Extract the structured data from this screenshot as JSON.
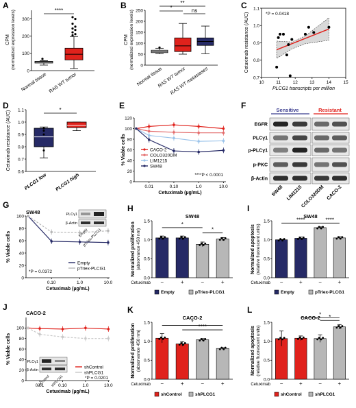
{
  "colors": {
    "red": "#e0221c",
    "darkred": "#a8151b",
    "navy": "#262a66",
    "lightblue": "#9cc4ea",
    "blue": "#3b3d8f",
    "grey": "#b7b7b7",
    "darkgrey": "#6f6f6f",
    "lightgrey": "#c8c8c8"
  },
  "chart_data": [
    {
      "panel": "A",
      "type": "box",
      "ylabel": "CPM",
      "ylabel2": "(normalized expression levels)",
      "yticks": [
        "0",
        "100",
        "200",
        "300"
      ],
      "ylim": [
        0,
        350
      ],
      "categories": [
        "Normal tissue",
        "RAS WT tumor"
      ],
      "boxes": [
        {
          "min": 32,
          "q1": 44,
          "median": 50,
          "q3": 54,
          "max": 58,
          "outliers": [
            68
          ]
        },
        {
          "min": 12,
          "q1": 62,
          "median": 95,
          "q3": 130,
          "max": 198,
          "outliers": [
            205,
            212,
            222,
            236,
            244,
            255,
            272,
            300,
            310
          ]
        }
      ],
      "significance": [
        {
          "label": "****"
        }
      ]
    },
    {
      "panel": "B",
      "type": "box",
      "ylabel": "CPM",
      "ylabel2": "(normalized expression levels)",
      "yticks": [
        "0",
        "50",
        "100",
        "150",
        "200",
        "250"
      ],
      "ylim": [
        0,
        250
      ],
      "categories": [
        "Normal tissue",
        "RAS WT tumor",
        "RAS WT metastases"
      ],
      "boxes": [
        {
          "min": 52,
          "q1": 57,
          "median": 62,
          "q3": 68,
          "max": 77,
          "outliers": [
            80
          ]
        },
        {
          "min": 50,
          "q1": 62,
          "median": 88,
          "q3": 124,
          "max": 190
        },
        {
          "min": 52,
          "q1": 90,
          "median": 108,
          "q3": 124,
          "max": 178
        }
      ],
      "significance": [
        {
          "label": "*"
        },
        {
          "label": "**"
        },
        {
          "label": "ns"
        }
      ]
    },
    {
      "panel": "C",
      "type": "scatter",
      "title": "*P = 0.0418",
      "ylabel": "Cetuximab resistance (AUC)",
      "xlabel": "PLCG1 transcripts per million",
      "xticks": [
        "10",
        "11",
        "12",
        "13",
        "14",
        "15"
      ],
      "yticks": [
        "0.7",
        "0.8",
        "0.9",
        "1.0",
        "1.1"
      ],
      "xlim": [
        10,
        15
      ],
      "ylim": [
        0.7,
        1.1
      ],
      "points": [
        [
          10.9,
          0.76
        ],
        [
          11.0,
          0.93
        ],
        [
          11.1,
          0.95
        ],
        [
          11.3,
          0.95
        ],
        [
          11.5,
          0.83
        ],
        [
          11.6,
          0.89
        ],
        [
          11.7,
          0.71
        ],
        [
          11.8,
          0.92
        ],
        [
          12.6,
          0.95
        ],
        [
          12.8,
          0.99
        ],
        [
          13.1,
          0.96
        ],
        [
          14.0,
          0.99
        ]
      ],
      "fit": [
        [
          10.9,
          0.86
        ],
        [
          14.0,
          0.98
        ]
      ]
    },
    {
      "panel": "D",
      "type": "box",
      "ylabel": "Cetuximab resistance (AUC)",
      "yticks": [
        "0.6",
        "0.7",
        "0.8",
        "0.9",
        "1.0",
        "1.1"
      ],
      "ylim": [
        0.6,
        1.1
      ],
      "categories": [
        "PLCG1 low",
        "PLCG1 high"
      ],
      "boxes": [
        {
          "min": 0.71,
          "q1": 0.8,
          "median": 0.88,
          "q3": 0.95,
          "max": 0.96
        },
        {
          "min": 0.93,
          "q1": 0.955,
          "median": 0.975,
          "q3": 1.0,
          "max": 1.0
        }
      ],
      "significance": [
        {
          "label": "*"
        }
      ]
    },
    {
      "panel": "E",
      "type": "line",
      "ylabel": "% Viable cells",
      "xlabel": "Cetuximab (µg/mL)",
      "xticks": [
        "0.01",
        "0.10",
        "1.0",
        "10.0"
      ],
      "yticks": [
        "0",
        "20",
        "40",
        "60",
        "80",
        "100",
        "120"
      ],
      "ylim": [
        0,
        120
      ],
      "x": [
        0,
        0.01,
        0.1,
        1,
        10
      ],
      "series": [
        {
          "name": "CACO-2",
          "values": [
            100,
            104,
            107,
            104,
            100
          ]
        },
        {
          "name": "COLO320DM",
          "values": [
            100,
            95,
            93,
            92,
            92
          ]
        },
        {
          "name": "LIM1215",
          "values": [
            100,
            87,
            82,
            76,
            77
          ]
        },
        {
          "name": "SW48",
          "values": [
            100,
            79,
            58,
            56,
            59
          ]
        }
      ],
      "annotation": "****P < 0.0001"
    },
    {
      "panel": "F",
      "type": "western blot",
      "groups": [
        "Sensitive",
        "Resistant"
      ],
      "rows": [
        "EGFR",
        "PLCγ1",
        "p-PLCγ1",
        "p-PKC",
        "β-Actin"
      ],
      "lanes": [
        "SW48",
        "LIM1215",
        "COLO320DM",
        "CACO-2"
      ]
    },
    {
      "panel": "G",
      "type": "line",
      "title": "SW48",
      "ylabel": "% Viable cells",
      "xlabel": "Cetuximab (µg/mL)",
      "xticks": [
        "0.10",
        "1.0",
        "10.0"
      ],
      "yticks": [
        "0",
        "20",
        "40",
        "60",
        "80",
        "100"
      ],
      "ylim": [
        0,
        100
      ],
      "x": [
        0,
        0.1,
        1,
        10
      ],
      "series": [
        {
          "name": "Empty",
          "values": [
            100,
            59,
            58,
            57
          ]
        },
        {
          "name": "pTriex-PLCG1",
          "values": [
            100,
            74,
            73,
            76
          ]
        }
      ],
      "annotation": "*P = 0.0372",
      "inset": {
        "rows": [
          "PLCγ1",
          "β-Actin"
        ],
        "lanes": [
          "Empty",
          "pTriex-PLCG1"
        ]
      }
    },
    {
      "panel": "H",
      "type": "bar",
      "title": "SW48",
      "ylabel": "Normalized proliferation",
      "ylabel2": "(absorvance 450 nm)",
      "yticks": [
        "0.0",
        "0.5",
        "1.0",
        "1.5"
      ],
      "ylim": [
        0,
        1.5
      ],
      "categories": [
        "−",
        "+",
        "−",
        "+"
      ],
      "cetuximab_label": "Cetuximab",
      "values": [
        1.05,
        1.05,
        0.88,
        1.02
      ],
      "errors": [
        0.05,
        0.05,
        0.06,
        0.04
      ],
      "legend": [
        "Empty",
        "pTriex-PLCG1"
      ],
      "significance": [
        {
          "label": "*"
        },
        {
          "label": "*"
        }
      ]
    },
    {
      "panel": "I",
      "type": "bar",
      "title": "SW48",
      "ylabel": "Normalized apoptosis",
      "ylabel2": "(relative fluorescent units)",
      "yticks": [
        "0.0",
        "0.5",
        "1.0",
        "1.5"
      ],
      "ylim": [
        0,
        1.5
      ],
      "categories": [
        "−",
        "+",
        "−",
        "+"
      ],
      "cetuximab_label": "Cetuximab",
      "values": [
        1.0,
        1.04,
        1.32,
        1.05
      ],
      "errors": [
        0.01,
        0.03,
        0.02,
        0.03
      ],
      "legend": [
        "Empty",
        "pTriex-PLCG1"
      ],
      "significance": [
        {
          "label": "****"
        },
        {
          "label": "****"
        }
      ]
    },
    {
      "panel": "J",
      "type": "line",
      "title": "CACO-2",
      "ylabel": "% Viable cells",
      "xlabel": "Cetuximab (µg/mL)",
      "xticks": [
        "0.01",
        "0.10",
        "1.0",
        "10.0"
      ],
      "yticks": [
        "0",
        "20",
        "40",
        "60",
        "80",
        "100"
      ],
      "ylim": [
        0,
        120
      ],
      "x": [
        0,
        0.01,
        0.1,
        1,
        10
      ],
      "series": [
        {
          "name": "shControl",
          "values": [
            100,
            99,
            98,
            100,
            98
          ]
        },
        {
          "name": "shPLCG1",
          "values": [
            100,
            88,
            83,
            80,
            80
          ]
        }
      ],
      "annotation": "*P = 0.0201",
      "inset": {
        "rows": [
          "PLCγ1",
          "β-Actin"
        ],
        "lanes": [
          "shControl",
          "shPLCG1"
        ]
      }
    },
    {
      "panel": "K",
      "type": "bar",
      "title": "CACO-2",
      "ylabel": "Normalized proliferation",
      "ylabel2": "(absorvance 450 nm)",
      "yticks": [
        "0.0",
        "0.5",
        "1.0",
        "1.5"
      ],
      "ylim": [
        0,
        1.5
      ],
      "categories": [
        "−",
        "+",
        "−",
        "+"
      ],
      "cetuximab_label": "Cetuximab",
      "values": [
        1.08,
        0.93,
        1.04,
        0.81
      ],
      "errors": [
        0.12,
        0.06,
        0.03,
        0.02
      ],
      "legend": [
        "shControl",
        "shPLCG1"
      ],
      "significance": [
        {
          "label": "*"
        },
        {
          "label": "****"
        }
      ]
    },
    {
      "panel": "L",
      "type": "bar",
      "title": "CACO-2",
      "ylabel": "Normalized apoptosis",
      "ylabel2": "(relative fluorescent units)",
      "yticks": [
        "0.0",
        "0.5",
        "1.0",
        "1.5"
      ],
      "ylim": [
        0,
        1.5
      ],
      "categories": [
        "−",
        "+",
        "−",
        "+"
      ],
      "cetuximab_label": "Cetuximab",
      "values": [
        1.07,
        1.08,
        1.07,
        1.38
      ],
      "errors": [
        0.2,
        0.06,
        0.1,
        0.06
      ],
      "legend": [
        "shControl",
        "shPLCG1"
      ],
      "significance": [
        {
          "label": "*"
        },
        {
          "label": "*"
        }
      ]
    }
  ]
}
